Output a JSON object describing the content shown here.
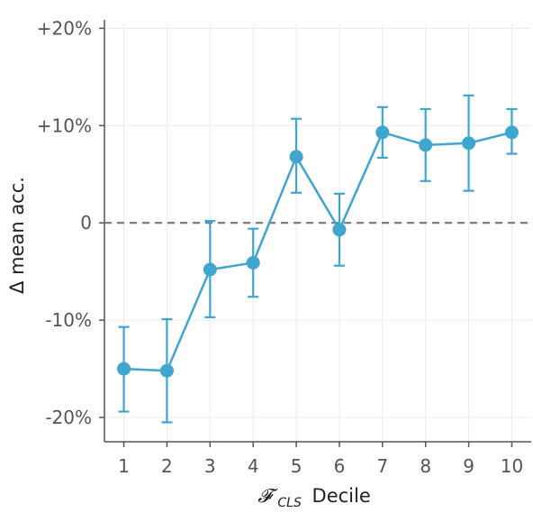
{
  "chart_data": {
    "type": "line",
    "x": [
      1,
      2,
      3,
      4,
      5,
      6,
      7,
      8,
      9,
      10
    ],
    "series": [
      {
        "values": [
          -15.0,
          -15.2,
          -4.8,
          -4.1,
          6.8,
          -0.7,
          9.3,
          8.0,
          8.2,
          9.3
        ],
        "err_low": [
          -19.4,
          -20.5,
          -9.7,
          -7.6,
          3.1,
          -4.4,
          6.7,
          4.3,
          3.3,
          7.1
        ],
        "err_high": [
          -10.7,
          -9.9,
          0.2,
          -0.6,
          10.7,
          3.0,
          11.9,
          11.7,
          13.1,
          11.7
        ],
        "color": "#3ea6cf"
      }
    ],
    "xlabel_main": "𝓕",
    "xlabel_sub": "CLS",
    "xlabel_rest": "Decile",
    "ylabel": "Δ mean acc.",
    "xticks": [
      "1",
      "2",
      "3",
      "4",
      "5",
      "6",
      "7",
      "8",
      "9",
      "10"
    ],
    "yticks": [
      {
        "value": 20,
        "label": "+20%"
      },
      {
        "value": 10,
        "label": "+10%"
      },
      {
        "value": 0,
        "label": "0"
      },
      {
        "value": -10,
        "label": "-10%"
      },
      {
        "value": -20,
        "label": "-20%"
      }
    ],
    "xlim": [
      0.55,
      10.45
    ],
    "ylim": [
      -22.5,
      20.5
    ],
    "grid": true,
    "reference_line": {
      "value": 0,
      "style": "dashed",
      "color": "#777777"
    }
  }
}
